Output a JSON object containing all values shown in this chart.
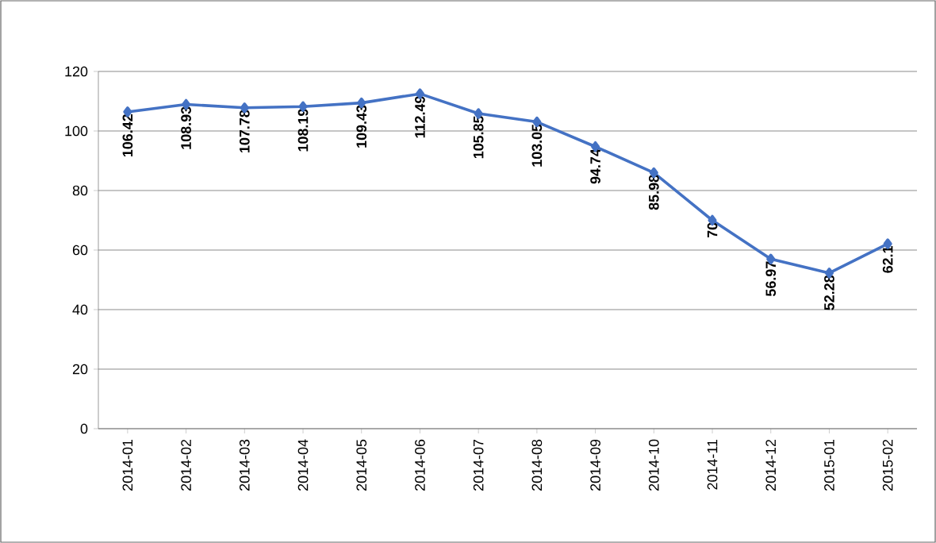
{
  "chart_data": {
    "type": "line",
    "categories": [
      "2014-01",
      "2014-02",
      "2014-03",
      "2014-04",
      "2014-05",
      "2014-06",
      "2014-07",
      "2014-08",
      "2014-09",
      "2014-10",
      "2014-11",
      "2014-12",
      "2015-01",
      "2015-02"
    ],
    "values": [
      106.42,
      108.93,
      107.78,
      108.19,
      109.43,
      112.49,
      105.85,
      103.05,
      94.74,
      85.98,
      70,
      56.97,
      52.28,
      62.1
    ],
    "value_labels": [
      "106.42",
      "108.93",
      "107.78",
      "108.19",
      "109.43",
      "112.49",
      "105.85",
      "103.05",
      "94.74",
      "85.98",
      "70",
      "56.97",
      "52.28",
      "62.1"
    ],
    "color": "#4472c4",
    "ylim": [
      0,
      120
    ],
    "yticks": [
      0,
      20,
      40,
      60,
      80,
      100,
      120
    ],
    "grid": "y",
    "marker": "diamond",
    "line_style": "solid"
  }
}
